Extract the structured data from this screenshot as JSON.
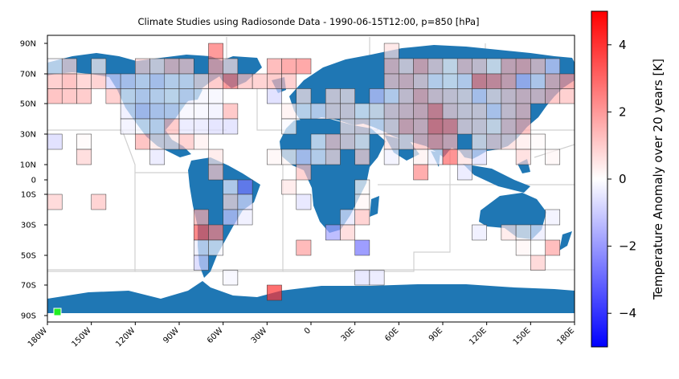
{
  "chart_data": {
    "type": "heatmap",
    "title": "Climate Studies using Radiosonde Data - 1990-06-15T12:00, p=850 [hPa]",
    "xlabel": "",
    "ylabel": "",
    "xlim": [
      -180,
      180
    ],
    "ylim": [
      -90,
      90
    ],
    "xticks": [
      -180,
      -150,
      -120,
      -90,
      -60,
      -30,
      0,
      30,
      60,
      90,
      120,
      150,
      180
    ],
    "xtick_labels": [
      "180W",
      "150W",
      "120W",
      "90W",
      "60W",
      "30W",
      "0",
      "30E",
      "60E",
      "90E",
      "120E",
      "150E",
      "180E"
    ],
    "yticks": [
      90,
      70,
      50,
      30,
      10,
      0,
      -10,
      -30,
      -50,
      -70,
      -90
    ],
    "ytick_labels": [
      "90N",
      "70N",
      "50N",
      "30N",
      "10N",
      "0",
      "10S",
      "30S",
      "50S",
      "70S",
      "90S"
    ],
    "grid_cell_degrees": 10,
    "colorbar": {
      "label": "Temperature Anomaly over 20 years [K]",
      "min": -5,
      "max": 5,
      "ticks": [
        4,
        2,
        0,
        -2,
        -4
      ],
      "tick_labels": [
        "4",
        "2",
        "0",
        "−2",
        "−4"
      ],
      "colormap": "bwr"
    },
    "cells": [
      [
        -175,
        75,
        -0.2
      ],
      [
        -165,
        75,
        0.8
      ],
      [
        -145,
        75,
        0.3
      ],
      [
        -115,
        75,
        0.9
      ],
      [
        -105,
        75,
        0.5
      ],
      [
        -95,
        75,
        1.3
      ],
      [
        -85,
        75,
        1.1
      ],
      [
        -65,
        85,
        2.8
      ],
      [
        -65,
        75,
        1.8
      ],
      [
        -55,
        75,
        0.6
      ],
      [
        -25,
        75,
        1.8
      ],
      [
        -15,
        75,
        2.3
      ],
      [
        -5,
        75,
        2.4
      ],
      [
        55,
        85,
        0.6
      ],
      [
        55,
        75,
        1.3
      ],
      [
        65,
        75,
        0.6
      ],
      [
        75,
        75,
        1.6
      ],
      [
        85,
        75,
        0.8
      ],
      [
        95,
        75,
        0.1
      ],
      [
        105,
        75,
        1.1
      ],
      [
        115,
        75,
        0.8
      ],
      [
        125,
        75,
        0.1
      ],
      [
        135,
        75,
        1.5
      ],
      [
        145,
        75,
        1.7
      ],
      [
        155,
        75,
        1.1
      ],
      [
        165,
        75,
        -0.9
      ],
      [
        -175,
        65,
        1.3
      ],
      [
        -165,
        65,
        1.6
      ],
      [
        -155,
        65,
        1.1
      ],
      [
        -145,
        65,
        1.2
      ],
      [
        -135,
        65,
        -0.9
      ],
      [
        -125,
        65,
        -0.7
      ],
      [
        -115,
        65,
        -0.4
      ],
      [
        -105,
        65,
        -0.7
      ],
      [
        -95,
        65,
        -0.3
      ],
      [
        -85,
        65,
        -0.3
      ],
      [
        -75,
        65,
        0.6
      ],
      [
        -65,
        65,
        1.4
      ],
      [
        -55,
        65,
        2.7
      ],
      [
        -45,
        65,
        1.3
      ],
      [
        -35,
        65,
        1.2
      ],
      [
        -25,
        65,
        1.4
      ],
      [
        -15,
        65,
        1.3
      ],
      [
        55,
        65,
        1.1
      ],
      [
        65,
        65,
        1.3
      ],
      [
        75,
        65,
        0.8
      ],
      [
        85,
        65,
        -0.3
      ],
      [
        95,
        65,
        -0.1
      ],
      [
        105,
        65,
        -0.4
      ],
      [
        115,
        65,
        2.5
      ],
      [
        125,
        65,
        2.2
      ],
      [
        135,
        65,
        1.6
      ],
      [
        145,
        65,
        -1.3
      ],
      [
        155,
        65,
        -0.5
      ],
      [
        165,
        65,
        1.4
      ],
      [
        175,
        65,
        2.1
      ],
      [
        -175,
        55,
        1.6
      ],
      [
        -165,
        55,
        1.5
      ],
      [
        -155,
        55,
        1.4
      ],
      [
        -135,
        55,
        1.3
      ],
      [
        -125,
        55,
        -0.2
      ],
      [
        -115,
        55,
        -0.5
      ],
      [
        -105,
        55,
        -0.3
      ],
      [
        -95,
        55,
        -0.1
      ],
      [
        -85,
        55,
        -0.4
      ],
      [
        -75,
        55,
        -0.2
      ],
      [
        -65,
        55,
        -0.2
      ],
      [
        -25,
        55,
        -0.8
      ],
      [
        -5,
        55,
        0.5
      ],
      [
        15,
        55,
        0.6
      ],
      [
        25,
        55,
        0.5
      ],
      [
        45,
        55,
        -1.1
      ],
      [
        55,
        55,
        -0.4
      ],
      [
        65,
        55,
        0.8
      ],
      [
        75,
        55,
        1.6
      ],
      [
        85,
        55,
        0.9
      ],
      [
        95,
        55,
        0.7
      ],
      [
        105,
        55,
        0.5
      ],
      [
        115,
        55,
        -0.7
      ],
      [
        125,
        55,
        0.5
      ],
      [
        135,
        55,
        0.9
      ],
      [
        145,
        55,
        1.2
      ],
      [
        155,
        55,
        1.1
      ],
      [
        165,
        55,
        1.5
      ],
      [
        175,
        55,
        1.3
      ],
      [
        -125,
        45,
        -0.4
      ],
      [
        -115,
        45,
        -0.9
      ],
      [
        -105,
        45,
        -0.6
      ],
      [
        -95,
        45,
        -0.5
      ],
      [
        -85,
        45,
        -0.2
      ],
      [
        -75,
        45,
        -0.2
      ],
      [
        -65,
        45,
        -0.3
      ],
      [
        -55,
        45,
        1.5
      ],
      [
        -15,
        45,
        0.3
      ],
      [
        -5,
        45,
        -0.2
      ],
      [
        5,
        45,
        -0.4
      ],
      [
        15,
        45,
        0.6
      ],
      [
        25,
        45,
        0.6
      ],
      [
        35,
        45,
        -0.1
      ],
      [
        45,
        45,
        0.2
      ],
      [
        55,
        45,
        0.8
      ],
      [
        65,
        45,
        1.1
      ],
      [
        75,
        45,
        1.4
      ],
      [
        85,
        45,
        2.5
      ],
      [
        95,
        45,
        0.9
      ],
      [
        105,
        45,
        0.6
      ],
      [
        115,
        45,
        0.6
      ],
      [
        125,
        45,
        -0.6
      ],
      [
        135,
        45,
        0.8
      ],
      [
        145,
        45,
        1.3
      ],
      [
        -125,
        35,
        -0.3
      ],
      [
        -115,
        35,
        -0.2
      ],
      [
        -105,
        35,
        -0.3
      ],
      [
        -95,
        35,
        1.4
      ],
      [
        -85,
        35,
        -0.5
      ],
      [
        -75,
        35,
        -0.5
      ],
      [
        -65,
        35,
        -0.7
      ],
      [
        -55,
        35,
        -0.7
      ],
      [
        -15,
        35,
        -0.1
      ],
      [
        25,
        35,
        0.5
      ],
      [
        35,
        35,
        0.6
      ],
      [
        45,
        35,
        -0.3
      ],
      [
        55,
        35,
        0.6
      ],
      [
        65,
        35,
        1.6
      ],
      [
        75,
        35,
        1.3
      ],
      [
        85,
        35,
        2.8
      ],
      [
        95,
        35,
        2.5
      ],
      [
        105,
        35,
        0.7
      ],
      [
        115,
        35,
        0.6
      ],
      [
        125,
        35,
        0.2
      ],
      [
        135,
        35,
        1.1
      ],
      [
        145,
        35,
        1.6
      ],
      [
        -175,
        25,
        -0.8
      ],
      [
        -155,
        25,
        0.1
      ],
      [
        -115,
        25,
        1.6
      ],
      [
        -105,
        25,
        0.5
      ],
      [
        -95,
        25,
        0.5
      ],
      [
        -85,
        25,
        1.2
      ],
      [
        -75,
        25,
        0.3
      ],
      [
        5,
        25,
        -0.2
      ],
      [
        15,
        25,
        1.1
      ],
      [
        25,
        25,
        0.7
      ],
      [
        35,
        25,
        0.2
      ],
      [
        55,
        25,
        0.6
      ],
      [
        65,
        25,
        0.5
      ],
      [
        75,
        25,
        1.3
      ],
      [
        85,
        25,
        2.0
      ],
      [
        95,
        25,
        1.5
      ],
      [
        115,
        25,
        0.3
      ],
      [
        125,
        25,
        0.8
      ],
      [
        135,
        25,
        0.7
      ],
      [
        145,
        25,
        0.4
      ],
      [
        155,
        25,
        0.1
      ],
      [
        -155,
        15,
        0.9
      ],
      [
        -105,
        15,
        -0.5
      ],
      [
        -65,
        15,
        0.5
      ],
      [
        -25,
        15,
        0.2
      ],
      [
        -15,
        15,
        0.2
      ],
      [
        -5,
        15,
        -0.8
      ],
      [
        5,
        15,
        -0.3
      ],
      [
        15,
        15,
        0.7
      ],
      [
        35,
        15,
        0.9
      ],
      [
        55,
        15,
        -0.3
      ],
      [
        75,
        15,
        0.3
      ],
      [
        85,
        15,
        -0.3
      ],
      [
        95,
        15,
        3.0
      ],
      [
        105,
        15,
        0.6
      ],
      [
        115,
        15,
        -0.6
      ],
      [
        145,
        15,
        0.8
      ],
      [
        165,
        15,
        0.2
      ],
      [
        -65,
        5,
        1.1
      ],
      [
        -5,
        5,
        1.2
      ],
      [
        75,
        5,
        2.3
      ],
      [
        105,
        5,
        -0.5
      ],
      [
        -55,
        -5,
        -0.4
      ],
      [
        -45,
        -5,
        -2.6
      ],
      [
        -15,
        -5,
        0.5
      ],
      [
        35,
        -5,
        0.1
      ],
      [
        -175,
        -15,
        1.0
      ],
      [
        -145,
        -15,
        1.2
      ],
      [
        -55,
        -15,
        0.7
      ],
      [
        -45,
        -15,
        -0.7
      ],
      [
        -5,
        -15,
        -0.6
      ],
      [
        35,
        -15,
        0.2
      ],
      [
        -75,
        -25,
        1.6
      ],
      [
        -55,
        -25,
        -1.1
      ],
      [
        -45,
        -25,
        -0.4
      ],
      [
        25,
        -25,
        -0.5
      ],
      [
        35,
        -25,
        1.2
      ],
      [
        165,
        -25,
        -0.3
      ],
      [
        -75,
        -35,
        3.3
      ],
      [
        -65,
        -35,
        2.5
      ],
      [
        15,
        -35,
        -1.8
      ],
      [
        25,
        -35,
        0.9
      ],
      [
        115,
        -35,
        -0.4
      ],
      [
        135,
        -35,
        0.5
      ],
      [
        145,
        -35,
        0.2
      ],
      [
        155,
        -35,
        -0.4
      ],
      [
        -75,
        -45,
        -0.4
      ],
      [
        -65,
        -45,
        -0.2
      ],
      [
        -5,
        -45,
        1.9
      ],
      [
        35,
        -45,
        -2.7
      ],
      [
        145,
        -45,
        0.2
      ],
      [
        165,
        -45,
        1.8
      ],
      [
        -75,
        -55,
        -0.9
      ],
      [
        155,
        -55,
        1.0
      ],
      [
        -55,
        -65,
        -0.2
      ],
      [
        35,
        -65,
        -0.6
      ],
      [
        45,
        -65,
        -0.5
      ],
      [
        -25,
        -75,
        4.0
      ]
    ]
  }
}
